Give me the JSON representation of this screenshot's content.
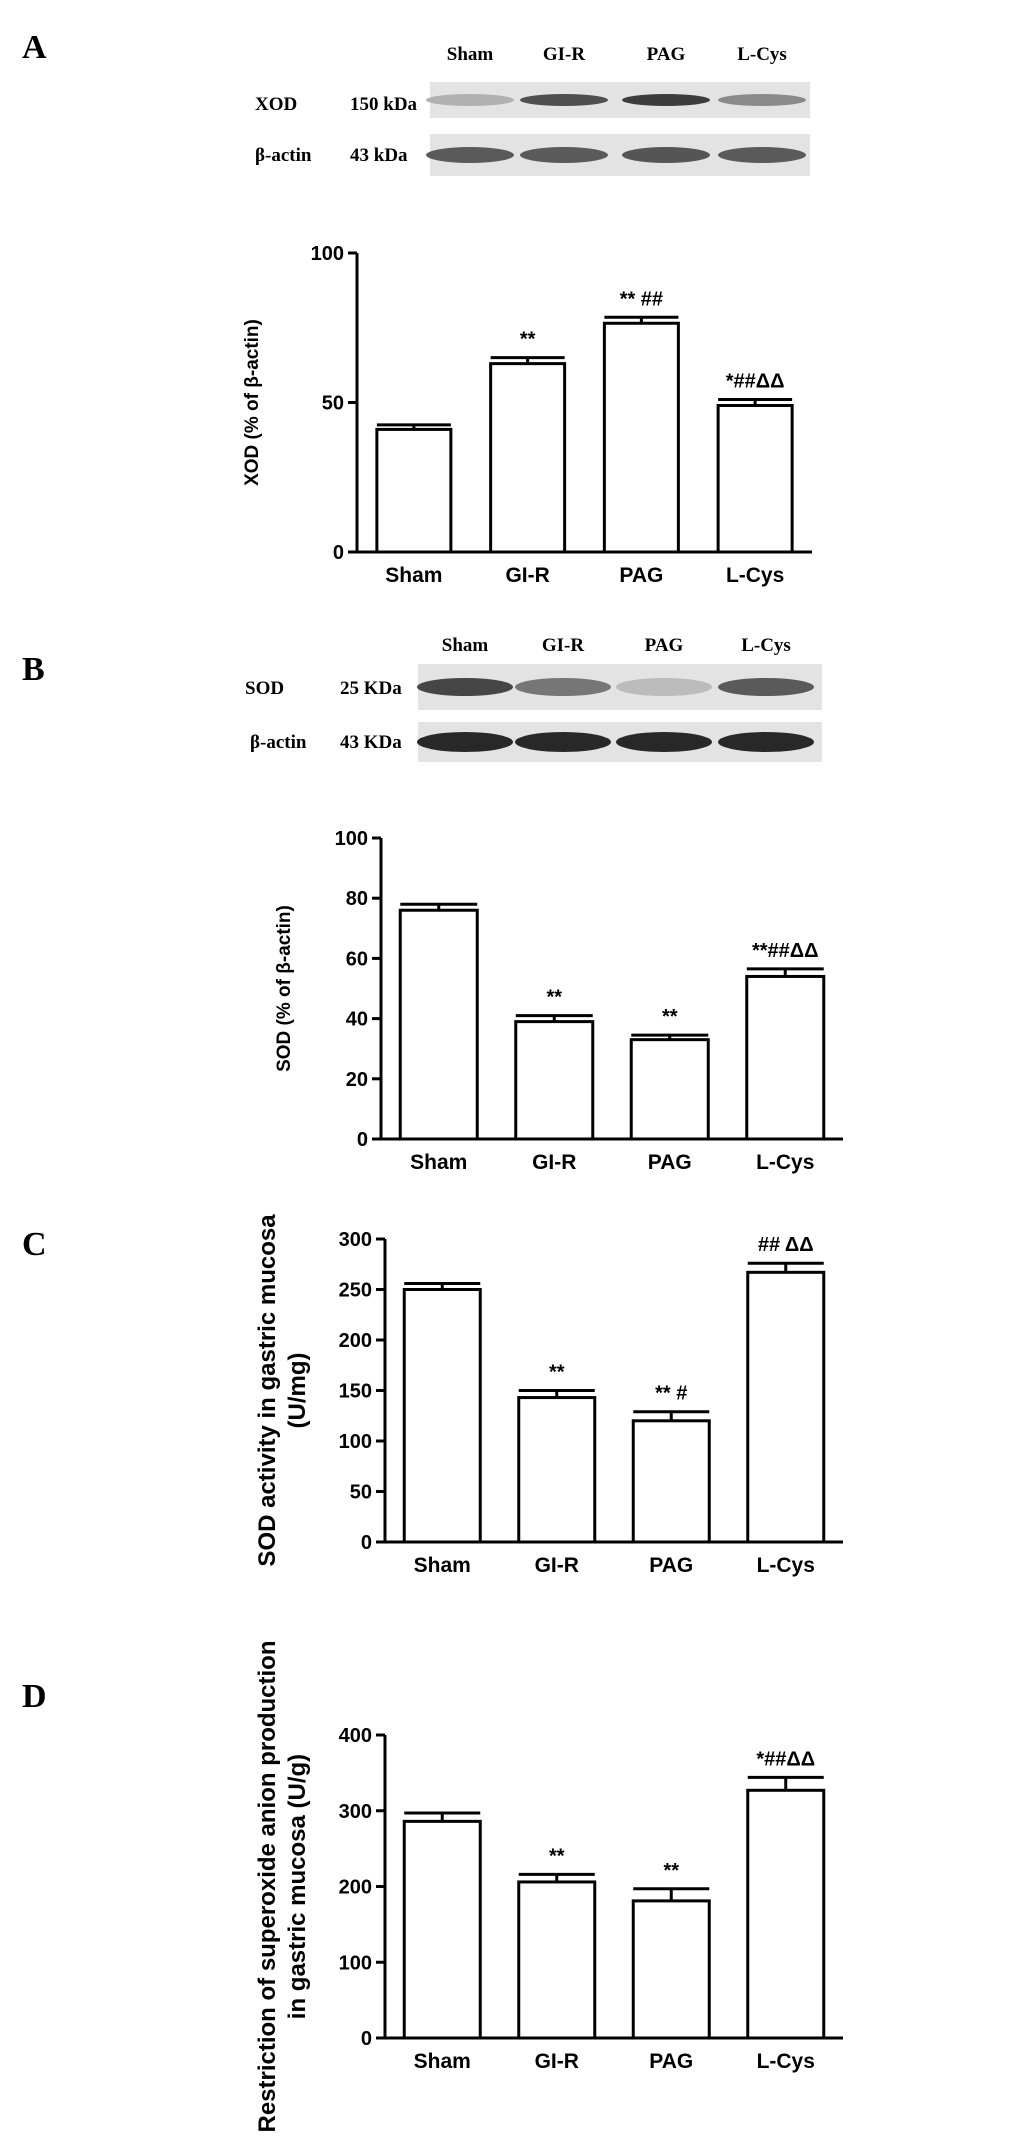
{
  "blots": [
    {
      "letter": "A",
      "lanes": [
        "Sham",
        "GI-R",
        "PAG",
        "L-Cys"
      ],
      "rows": [
        {
          "name": "XOD",
          "size": "150 kDa",
          "intensity": [
            0.25,
            0.75,
            0.85,
            0.45
          ]
        },
        {
          "name": "β-actin",
          "size": "43 kDa",
          "intensity": [
            0.7,
            0.7,
            0.72,
            0.7
          ]
        }
      ]
    },
    {
      "letter": "B",
      "lanes": [
        "Sham",
        "GI-R",
        "PAG",
        "L-Cys"
      ],
      "rows": [
        {
          "name": "SOD",
          "size": "25 KDa",
          "intensity": [
            0.8,
            0.55,
            0.2,
            0.7
          ]
        },
        {
          "name": "β-actin",
          "size": "43 KDa",
          "intensity": [
            0.95,
            0.95,
            0.95,
            0.95
          ]
        }
      ]
    },
    {
      "letter": "C",
      "lanes": [],
      "rows": []
    },
    {
      "letter": "D",
      "lanes": [],
      "rows": []
    }
  ],
  "chart_data": [
    {
      "type": "bar",
      "categories": [
        "Sham",
        "GI-R",
        "PAG",
        "L-Cys"
      ],
      "values": [
        41,
        63,
        76.5,
        49
      ],
      "errors": [
        1.5,
        2,
        2,
        2
      ],
      "annotations": [
        {
          "lines": [
            ""
          ]
        },
        {
          "lines": [
            "**"
          ]
        },
        {
          "lines": [
            "** ##"
          ]
        },
        {
          "lines": [
            "*##ΔΔ"
          ]
        }
      ],
      "ylabel": [
        "XOD (% of β-actin)"
      ],
      "ylim": [
        0,
        100
      ],
      "yticks": [
        "0",
        "50",
        "100"
      ]
    },
    {
      "type": "bar",
      "categories": [
        "Sham",
        "GI-R",
        "PAG",
        "L-Cys"
      ],
      "values": [
        76,
        39,
        33,
        54
      ],
      "errors": [
        2,
        2,
        1.5,
        2.5
      ],
      "annotations": [
        {
          "lines": [
            ""
          ]
        },
        {
          "lines": [
            "**"
          ]
        },
        {
          "lines": [
            "**"
          ]
        },
        {
          "lines": [
            "**##ΔΔ"
          ]
        }
      ],
      "ylabel": [
        "SOD (% of β-actin)"
      ],
      "ylim": [
        0,
        100
      ],
      "yticks": [
        "0",
        "20",
        "40",
        "60",
        "80",
        "100"
      ]
    },
    {
      "type": "bar",
      "categories": [
        "Sham",
        "GI-R",
        "PAG",
        "L-Cys"
      ],
      "values": [
        250,
        143,
        120,
        267
      ],
      "errors": [
        6,
        7,
        9,
        9
      ],
      "annotations": [
        {
          "lines": [
            ""
          ]
        },
        {
          "lines": [
            "**"
          ]
        },
        {
          "lines": [
            "** #"
          ]
        },
        {
          "lines": [
            "## ΔΔ"
          ]
        }
      ],
      "ylabel": [
        "SOD activity in gastric mucosa",
        "(U/mg)"
      ],
      "ylim": [
        0,
        300
      ],
      "yticks": [
        "0",
        "50",
        "100",
        "150",
        "200",
        "250",
        "300"
      ]
    },
    {
      "type": "bar",
      "categories": [
        "Sham",
        "GI-R",
        "PAG",
        "L-Cys"
      ],
      "values": [
        286,
        206,
        181,
        327
      ],
      "errors": [
        11,
        10,
        16,
        17
      ],
      "annotations": [
        {
          "lines": [
            ""
          ]
        },
        {
          "lines": [
            "**"
          ]
        },
        {
          "lines": [
            "**"
          ]
        },
        {
          "lines": [
            "*##ΔΔ"
          ]
        }
      ],
      "ylabel": [
        "Restriction of superoxide anion production",
        "in gastric mucosa (U/g)"
      ],
      "ylim": [
        0,
        400
      ],
      "yticks": [
        "0",
        "100",
        "200",
        "300",
        "400"
      ]
    }
  ]
}
